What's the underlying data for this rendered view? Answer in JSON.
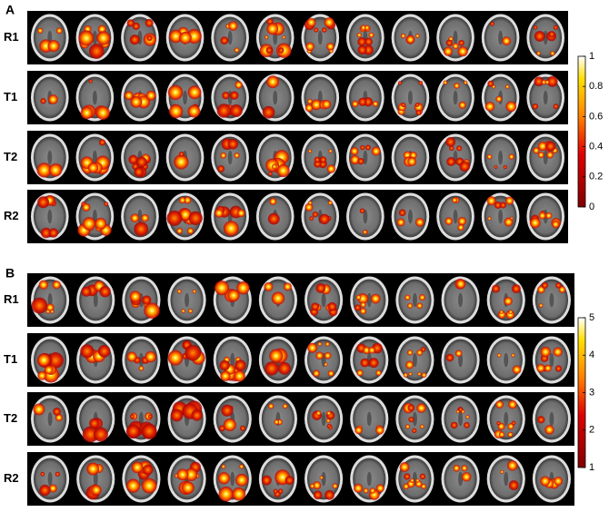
{
  "panels": [
    {
      "label": "A",
      "rows": [
        "R1",
        "T1",
        "T2",
        "R2"
      ],
      "colorbar": {
        "lim": [
          0,
          1
        ],
        "ticks": [
          0,
          0.2,
          0.4,
          0.6,
          0.8,
          1
        ]
      }
    },
    {
      "label": "B",
      "rows": [
        "R1",
        "T1",
        "T2",
        "R2"
      ],
      "colorbar": {
        "lim": [
          1,
          5
        ],
        "ticks": [
          1,
          2,
          3,
          4,
          5
        ]
      }
    }
  ]
}
